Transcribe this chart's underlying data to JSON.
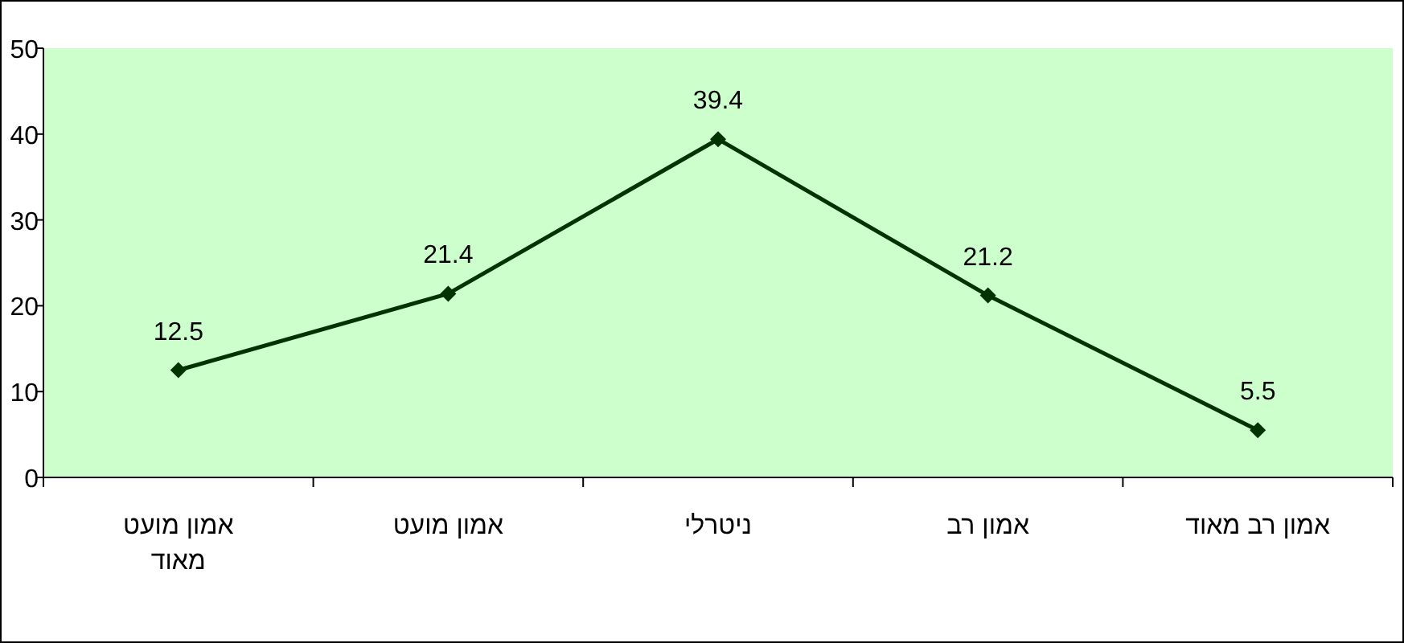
{
  "chart_data": {
    "type": "line",
    "categories": [
      "אמון מועט מאוד",
      "אמון מועט",
      "ניטרלי",
      "אמון רב",
      "אמון רב מאוד"
    ],
    "series": [
      {
        "color": "#003300",
        "values": [
          12.5,
          21.4,
          39.4,
          21.2,
          5.5
        ]
      }
    ],
    "ylim": [
      0,
      50
    ],
    "yticks": [
      0,
      10,
      20,
      30,
      40,
      50
    ],
    "grid": false,
    "marker": "diamond",
    "line_style": "solid",
    "data_labels": true
  }
}
